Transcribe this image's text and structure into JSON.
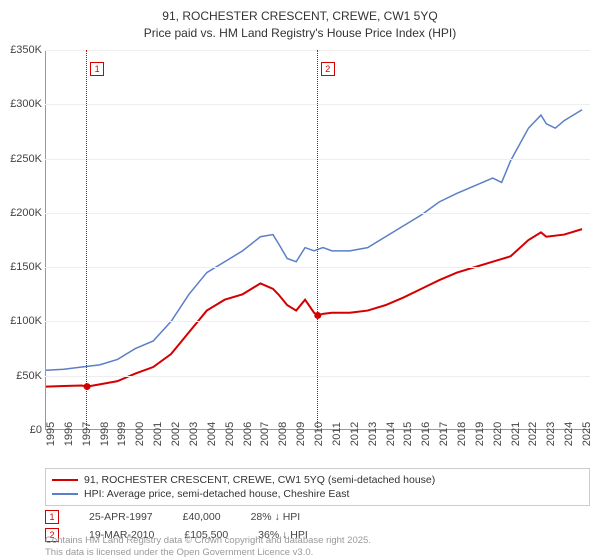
{
  "title": {
    "line1": "91, ROCHESTER CRESCENT, CREWE, CW1 5YQ",
    "line2": "Price paid vs. HM Land Registry's House Price Index (HPI)"
  },
  "chart": {
    "type": "line",
    "xlim": [
      1995,
      2025.5
    ],
    "ylim": [
      0,
      350000
    ],
    "ytick_step": 50000,
    "yticks": [
      "£0",
      "£50K",
      "£100K",
      "£150K",
      "£200K",
      "£250K",
      "£300K",
      "£350K"
    ],
    "xticks": [
      1995,
      1996,
      1997,
      1998,
      1999,
      2000,
      2001,
      2002,
      2003,
      2004,
      2005,
      2006,
      2007,
      2008,
      2009,
      2010,
      2011,
      2012,
      2013,
      2014,
      2015,
      2016,
      2017,
      2018,
      2019,
      2020,
      2021,
      2022,
      2023,
      2024,
      2025
    ],
    "background_color": "#ffffff",
    "grid_color": "#eeeeee",
    "axis_color": "#999999",
    "series": [
      {
        "name": "price_paid",
        "label": "91, ROCHESTER CRESCENT, CREWE, CW1 5YQ (semi-detached house)",
        "color": "#d40000",
        "line_width": 2,
        "points": [
          [
            1995,
            40000
          ],
          [
            1996,
            40500
          ],
          [
            1997,
            41000
          ],
          [
            1997.3,
            40000
          ],
          [
            1998,
            42000
          ],
          [
            1999,
            45000
          ],
          [
            2000,
            52000
          ],
          [
            2001,
            58000
          ],
          [
            2002,
            70000
          ],
          [
            2003,
            90000
          ],
          [
            2004,
            110000
          ],
          [
            2005,
            120000
          ],
          [
            2006,
            125000
          ],
          [
            2007,
            135000
          ],
          [
            2007.7,
            130000
          ],
          [
            2008,
            125000
          ],
          [
            2008.5,
            115000
          ],
          [
            2009,
            110000
          ],
          [
            2009.5,
            120000
          ],
          [
            2010,
            108000
          ],
          [
            2010.21,
            105500
          ],
          [
            2010.5,
            107000
          ],
          [
            2011,
            108000
          ],
          [
            2012,
            108000
          ],
          [
            2013,
            110000
          ],
          [
            2014,
            115000
          ],
          [
            2015,
            122000
          ],
          [
            2016,
            130000
          ],
          [
            2017,
            138000
          ],
          [
            2018,
            145000
          ],
          [
            2019,
            150000
          ],
          [
            2020,
            155000
          ],
          [
            2021,
            160000
          ],
          [
            2022,
            175000
          ],
          [
            2022.7,
            182000
          ],
          [
            2023,
            178000
          ],
          [
            2024,
            180000
          ],
          [
            2025,
            185000
          ]
        ]
      },
      {
        "name": "hpi",
        "label": "HPI: Average price, semi-detached house, Cheshire East",
        "color": "#5b7fc7",
        "line_width": 1.5,
        "points": [
          [
            1995,
            55000
          ],
          [
            1996,
            56000
          ],
          [
            1997,
            58000
          ],
          [
            1998,
            60000
          ],
          [
            1999,
            65000
          ],
          [
            2000,
            75000
          ],
          [
            2001,
            82000
          ],
          [
            2002,
            100000
          ],
          [
            2003,
            125000
          ],
          [
            2004,
            145000
          ],
          [
            2005,
            155000
          ],
          [
            2006,
            165000
          ],
          [
            2007,
            178000
          ],
          [
            2007.7,
            180000
          ],
          [
            2008,
            172000
          ],
          [
            2008.5,
            158000
          ],
          [
            2009,
            155000
          ],
          [
            2009.5,
            168000
          ],
          [
            2010,
            165000
          ],
          [
            2010.5,
            168000
          ],
          [
            2011,
            165000
          ],
          [
            2012,
            165000
          ],
          [
            2013,
            168000
          ],
          [
            2014,
            178000
          ],
          [
            2015,
            188000
          ],
          [
            2016,
            198000
          ],
          [
            2017,
            210000
          ],
          [
            2018,
            218000
          ],
          [
            2019,
            225000
          ],
          [
            2020,
            232000
          ],
          [
            2020.5,
            228000
          ],
          [
            2021,
            248000
          ],
          [
            2022,
            278000
          ],
          [
            2022.7,
            290000
          ],
          [
            2023,
            282000
          ],
          [
            2023.5,
            278000
          ],
          [
            2024,
            285000
          ],
          [
            2025,
            295000
          ]
        ]
      }
    ],
    "markers": [
      {
        "id": "1",
        "x": 1997.3,
        "color": "#d40000",
        "date": "25-APR-1997",
        "price": "£40,000",
        "delta": "28% ↓ HPI"
      },
      {
        "id": "2",
        "x": 2010.21,
        "color": "#d40000",
        "date": "19-MAR-2010",
        "price": "£105,500",
        "delta": "36% ↓ HPI"
      }
    ]
  },
  "footnote": {
    "line1": "Contains HM Land Registry data © Crown copyright and database right 2025.",
    "line2": "This data is licensed under the Open Government Licence v3.0."
  }
}
